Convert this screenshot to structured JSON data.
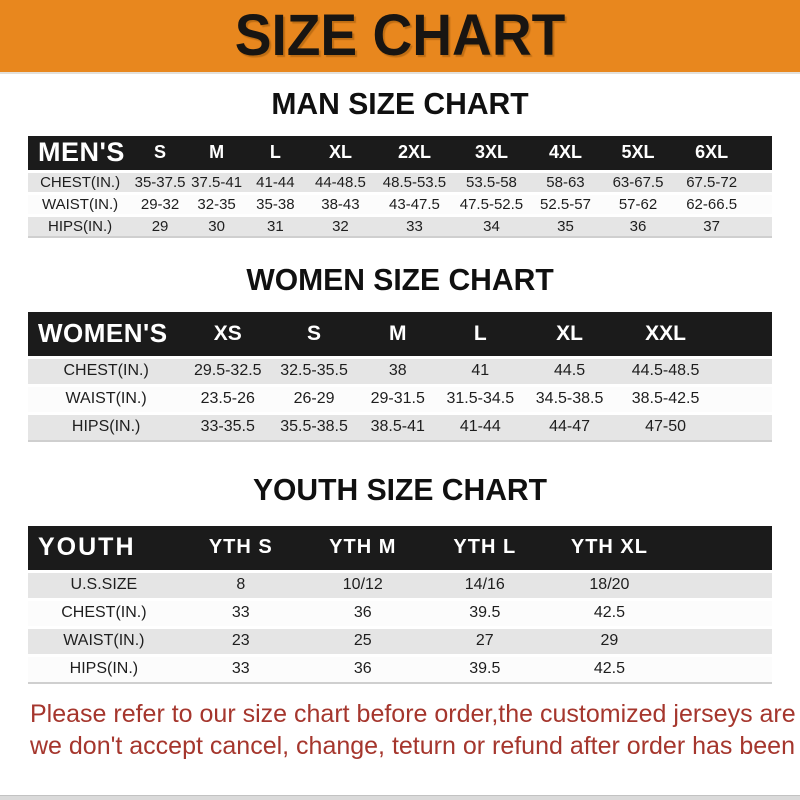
{
  "banner": {
    "title": "SIZE CHART"
  },
  "colors": {
    "banner_bg": "#E8871E",
    "header_bar": "#1B1B1B",
    "row_alt_gray": "#E5E5E5",
    "note_red": "#A5362D"
  },
  "sections": [
    {
      "title": "MAN SIZE CHART",
      "corner_label": "MEN'S",
      "columns": [
        "S",
        "M",
        "L",
        "XL",
        "2XL",
        "3XL",
        "4XL",
        "5XL",
        "6XL"
      ],
      "rows": [
        {
          "label": "CHEST(IN.)",
          "values": [
            "35-37.5",
            "37.5-41",
            "41-44",
            "44-48.5",
            "48.5-53.5",
            "53.5-58",
            "58-63",
            "63-67.5",
            "67.5-72"
          ]
        },
        {
          "label": "WAIST(IN.)",
          "values": [
            "29-32",
            "32-35",
            "35-38",
            "38-43",
            "43-47.5",
            "47.5-52.5",
            "52.5-57",
            "57-62",
            "62-66.5"
          ]
        },
        {
          "label": "HIPS(IN.)",
          "values": [
            "29",
            "30",
            "31",
            "32",
            "33",
            "34",
            "35",
            "36",
            "37"
          ]
        }
      ]
    },
    {
      "title": "WOMEN SIZE CHART",
      "corner_label": "WOMEN'S",
      "columns": [
        "XS",
        "S",
        "M",
        "L",
        "XL",
        "XXL"
      ],
      "rows": [
        {
          "label": "CHEST(IN.)",
          "values": [
            "29.5-32.5",
            "32.5-35.5",
            "38",
            "41",
            "44.5",
            "44.5-48.5"
          ]
        },
        {
          "label": "WAIST(IN.)",
          "values": [
            "23.5-26",
            "26-29",
            "29-31.5",
            "31.5-34.5",
            "34.5-38.5",
            "38.5-42.5"
          ]
        },
        {
          "label": "HIPS(IN.)",
          "values": [
            "33-35.5",
            "35.5-38.5",
            "38.5-41",
            "41-44",
            "44-47",
            "47-50"
          ]
        }
      ]
    },
    {
      "title": "YOUTH SIZE CHART",
      "corner_label": "YOUTH",
      "columns": [
        "YTH S",
        "YTH M",
        "YTH L",
        "YTH XL"
      ],
      "rows": [
        {
          "label": "U.S.SIZE",
          "values": [
            "8",
            "10/12",
            "14/16",
            "18/20"
          ]
        },
        {
          "label": "CHEST(IN.)",
          "values": [
            "33",
            "36",
            "39.5",
            "42.5"
          ]
        },
        {
          "label": "WAIST(IN.)",
          "values": [
            "23",
            "25",
            "27",
            "29"
          ]
        },
        {
          "label": "HIPS(IN.)",
          "values": [
            "33",
            "36",
            "39.5",
            "42.5"
          ]
        }
      ]
    }
  ],
  "footer": {
    "line1": "Please refer to our size chart before order,the customized jerseys are special products,",
    "line2": "we don't accept cancel, change, teturn or refund after order has been placed!"
  }
}
